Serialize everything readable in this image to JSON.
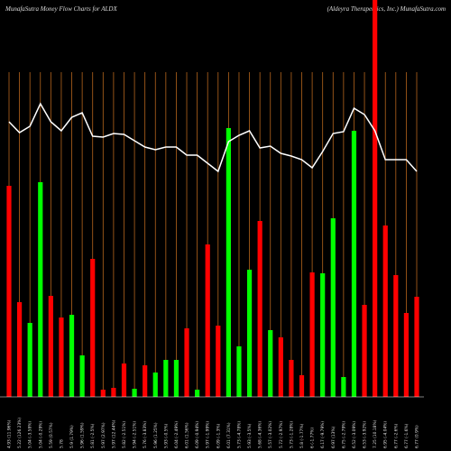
{
  "chart_data": {
    "type": "bar",
    "title": "MunafaSutra  Money Flow  Charts for ALDX",
    "subtitle": "(Aldeyra  Therapeutics,  Inc.) MunafaSutra.com",
    "categories": [
      "4.93 (11.96%)",
      "5.22 (126.23%)",
      "5.04 (-3.58%)",
      "5.04 (-0.29%)",
      "5.59 (0.57%)",
      "5.78",
      "5.9 (1.79%)",
      "5.96 (1.59%)",
      "5.81 (-2.5%)",
      "5.97 (2.97%)",
      "5.97 (12.44%)",
      "5.82 (-2.51%)",
      "5.94 (-2.51%)",
      "5.76 (-3.83%)",
      "5.96 (1.25%)",
      "5.93 (-0.5%)",
      "6.04 (-2.49%)",
      "6.01 (1.56%)",
      "6.09 (-0.94%)",
      "5.97 (-1.99%)",
      "6.09 (-1.3%)",
      "6.01 (7.31%)",
      "5.73 (-4.78%)",
      "5.93 (-3.5%)",
      "5.68 (-4.36%)",
      "5.57 (-3.02%)",
      "5.72 (-2.97%)",
      "5.73 (-1.28%)",
      "5.8 (-1.77%)",
      "6 (-1.77%)",
      "6.17 (-9.79%)",
      "6.97 (13%)",
      "6.75 (-2.79%)",
      "6.52 (-3.09%)",
      "6.53 (-3.92%)",
      "7.25 (10.18%)",
      "6.95 (-4.04%)",
      "6.77 (-2.6%)",
      "6.77 (-1.6%)",
      "6.77 (0.9%)"
    ],
    "series": [
      {
        "values": [
          234,
          105,
          82,
          238,
          112,
          88,
          91,
          46,
          153,
          8,
          10,
          37,
          9,
          35,
          27,
          41,
          41,
          76,
          8,
          169,
          79,
          298,
          56,
          141,
          195,
          74,
          66,
          41,
          24,
          138,
          137,
          198,
          22,
          295,
          102,
          440,
          190,
          135,
          93,
          111
        ],
        "colors": [
          "#ff0000",
          "#ff0000",
          "#00ff00",
          "#00ff00",
          "#ff0000",
          "#ff0000",
          "#00ff00",
          "#00ff00",
          "#ff0000",
          "#ff0000",
          "#ff0000",
          "#ff0000",
          "#00ff00",
          "#ff0000",
          "#00ff00",
          "#00ff00",
          "#00ff00",
          "#ff0000",
          "#00ff00",
          "#ff0000",
          "#ff0000",
          "#00ff00",
          "#00ff00",
          "#00ff00",
          "#ff0000",
          "#00ff00",
          "#ff0000",
          "#ff0000",
          "#ff0000",
          "#ff0000",
          "#00ff00",
          "#00ff00",
          "#00ff00",
          "#00ff00",
          "#ff0000",
          "#ff0000",
          "#ff0000",
          "#ff0000",
          "#ff0000",
          "#ff0000"
        ]
      },
      {
        "type": "line",
        "color": "#ffffff",
        "values": [
          305,
          293,
          300,
          325,
          305,
          295,
          310,
          315,
          289,
          288,
          292,
          291,
          284,
          277,
          274,
          277,
          277,
          268,
          268,
          259,
          250,
          283,
          290,
          295,
          276,
          278,
          270,
          267,
          263,
          254,
          272,
          292,
          294,
          320,
          313,
          295,
          263,
          263,
          263,
          250
        ]
      }
    ],
    "ylim": [
      0,
      440
    ],
    "grid_color": "#b5651d"
  }
}
